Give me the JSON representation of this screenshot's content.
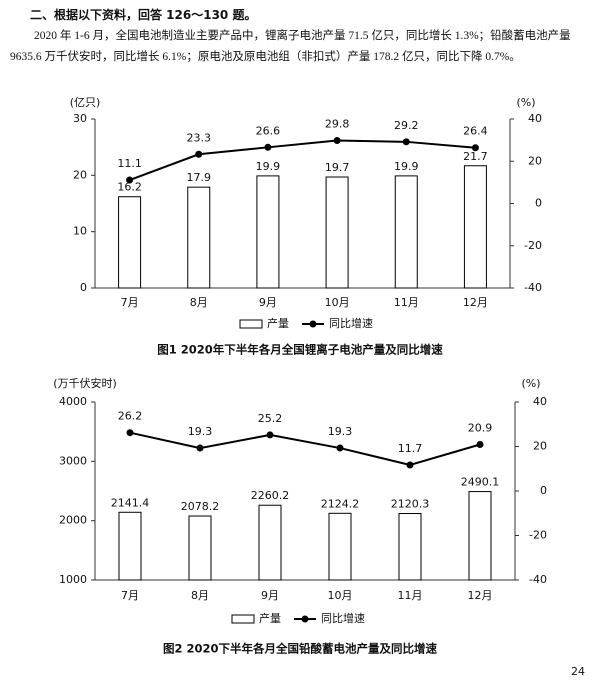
{
  "heading": "二、根据以下资料，回答 126～130 题。",
  "paragraph": "2020 年 1-6 月，全国电池制造业主要产品中，锂离子电池产量 71.5 亿只，同比增长 1.3%；铅酸蓄电池产量 9635.6 万千伏安时，同比增长 6.1%；原电池及原电池组（非扣式）产量 178.2 亿只，同比下降 0.7%。",
  "chart_data": [
    {
      "type": "bar",
      "title": "图1  2020年下半年各月全国锂离子电池产量及同比增速",
      "y_label": "(亿只)",
      "y2_label": "(%)",
      "categories": [
        "7月",
        "8月",
        "9月",
        "10月",
        "11月",
        "12月"
      ],
      "series": [
        {
          "name": "产量",
          "type": "bar",
          "color": "#000000",
          "values": [
            16.2,
            17.9,
            19.9,
            19.7,
            19.9,
            21.7
          ]
        },
        {
          "name": "同比增速",
          "type": "line",
          "axis": "y2",
          "color": "#000000",
          "values": [
            11.1,
            23.3,
            26.6,
            29.8,
            29.2,
            26.4
          ]
        }
      ],
      "ylim": [
        0,
        30
      ],
      "yticks": [
        0,
        10,
        20,
        30
      ],
      "y2lim": [
        -40,
        40
      ],
      "y2ticks": [
        -40,
        -20,
        0,
        20,
        40
      ]
    },
    {
      "type": "bar",
      "title": "图2  2020下半年各月全国铅酸蓄电池产量及同比增速",
      "y_label": "(万千伏安时)",
      "y2_label": "(%)",
      "categories": [
        "7月",
        "8月",
        "9月",
        "10月",
        "11月",
        "12月"
      ],
      "series": [
        {
          "name": "产量",
          "type": "bar",
          "color": "#000000",
          "values": [
            2141.4,
            2078.2,
            2260.2,
            2124.2,
            2120.3,
            2490.1
          ]
        },
        {
          "name": "同比增速",
          "type": "line",
          "axis": "y2",
          "color": "#000000",
          "values": [
            26.2,
            19.3,
            25.2,
            19.3,
            11.7,
            20.9
          ]
        }
      ],
      "ylim": [
        1000,
        4000
      ],
      "yticks": [
        1000,
        2000,
        3000,
        4000
      ],
      "y2lim": [
        -40,
        40
      ],
      "y2ticks": [
        -40,
        -20,
        0,
        20,
        40
      ]
    }
  ],
  "page_number": "24"
}
